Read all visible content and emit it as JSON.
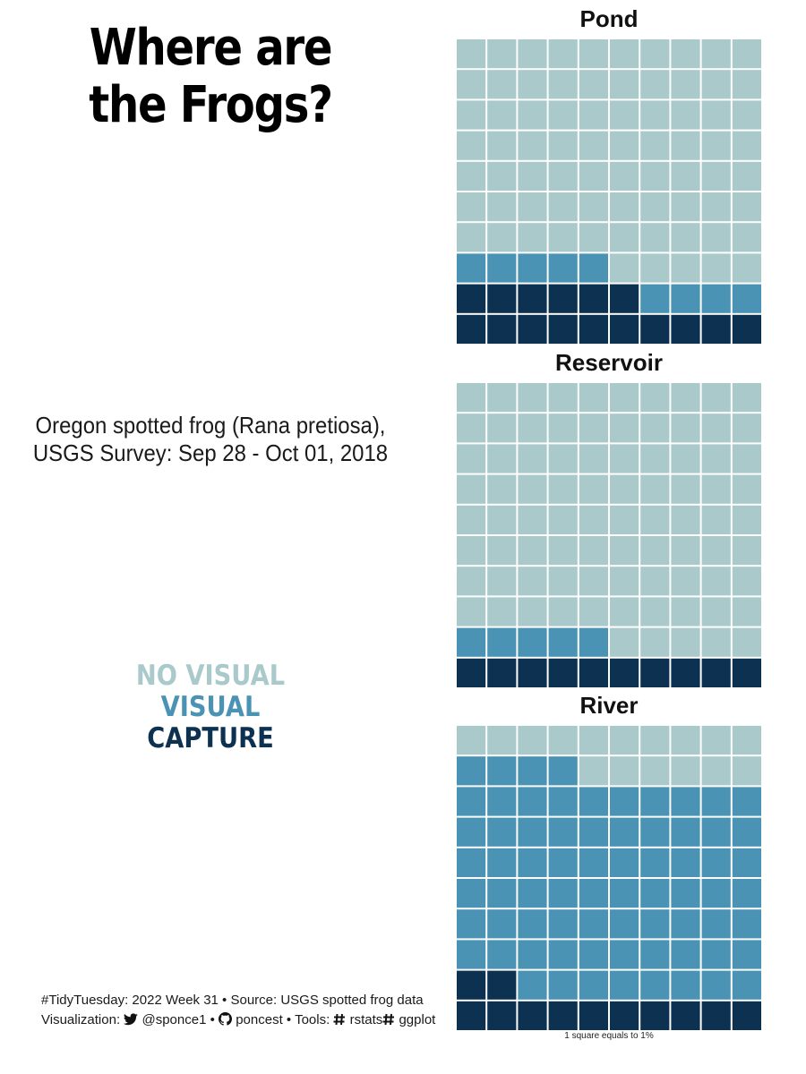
{
  "title": "Where are the Frogs?",
  "subtitle_line1": "Oregon spotted frog (Rana pretiosa),",
  "subtitle_line2": "USGS Survey: Sep 28 - Oct 01, 2018",
  "legend": {
    "items": [
      {
        "label": "NO VISUAL",
        "color": "#a9c9cb"
      },
      {
        "label": "VISUAL",
        "color": "#4a93b4"
      },
      {
        "label": "CAPTURE",
        "color": "#0d3151"
      }
    ]
  },
  "caption": {
    "line1": "#TidyTuesday: 2022 Week 31 • Source: USGS spotted frog data",
    "line2_prefix": "Visualization:",
    "twitter_handle": "@sponce1",
    "sep1": "•",
    "github_handle": "poncest",
    "tools_prefix": "• Tools:",
    "tool1": "rstats",
    "tool2": "ggplot",
    "icons": [
      "twitter-icon",
      "github-icon",
      "hashtag-icon",
      "hashtag-icon"
    ]
  },
  "note": "1 square equals to 1%",
  "chart_data": [
    {
      "type": "waffle",
      "title": "Pond",
      "grid": [
        10,
        10
      ],
      "categories": [
        "NO VISUAL",
        "VISUAL",
        "CAPTURE"
      ],
      "values": [
        75,
        9,
        16
      ],
      "unit": "1 square equals to 1%"
    },
    {
      "type": "waffle",
      "title": "Reservoir",
      "grid": [
        10,
        10
      ],
      "categories": [
        "NO VISUAL",
        "VISUAL",
        "CAPTURE"
      ],
      "values": [
        85,
        5,
        10
      ],
      "unit": "1 square equals to 1%"
    },
    {
      "type": "waffle",
      "title": "River",
      "grid": [
        10,
        10
      ],
      "categories": [
        "NO VISUAL",
        "VISUAL",
        "CAPTURE"
      ],
      "values": [
        16,
        72,
        12
      ],
      "unit": "1 square equals to 1%"
    }
  ]
}
